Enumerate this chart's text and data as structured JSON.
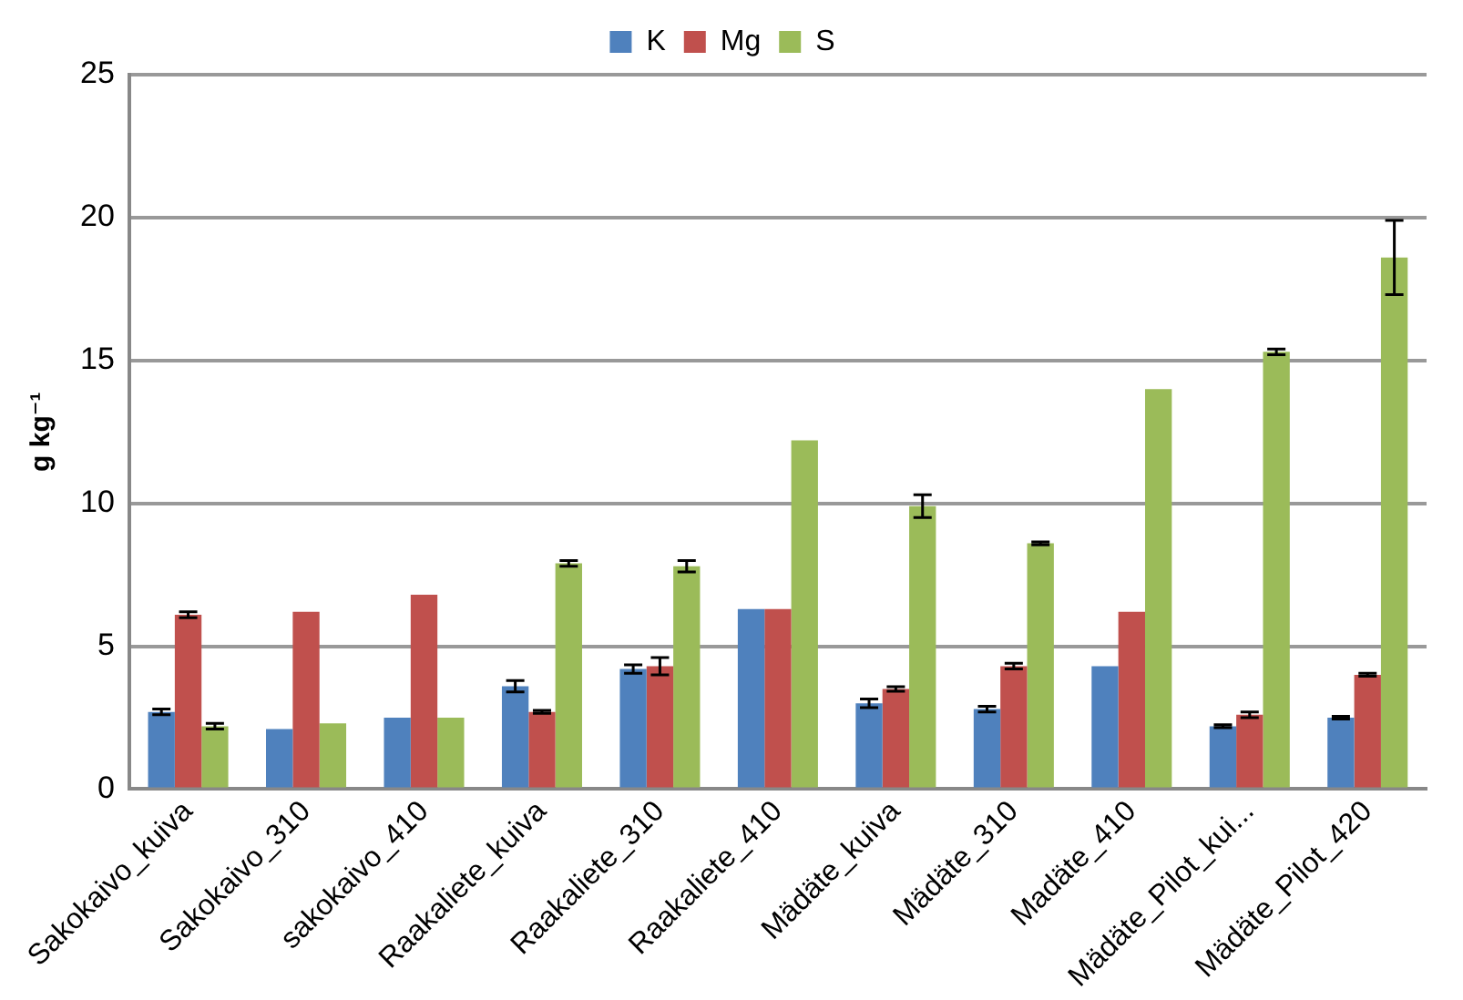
{
  "chart_data": {
    "type": "bar",
    "ylabel": "g kg⁻¹",
    "categories": [
      "Sakokaivo_kuiva",
      "Sakokaivo_310",
      "sakokaivo_410",
      "Raakaliete_kuiva",
      "Raakaliete_310",
      "Raakaliete_410",
      "Mädäte_kuiva",
      "Mädäte_310",
      "Madäte_410",
      "Mädäte_Pilot_kui...",
      "Mädäte_Pilot_420"
    ],
    "series": [
      {
        "name": "K",
        "color": "#4f81bd",
        "values": [
          2.7,
          2.1,
          2.5,
          3.6,
          4.2,
          6.3,
          3.0,
          2.8,
          4.3,
          2.2,
          2.5
        ],
        "errors": [
          0.1,
          null,
          null,
          0.2,
          0.15,
          null,
          0.15,
          0.1,
          null,
          0.05,
          0.05
        ]
      },
      {
        "name": "Mg",
        "color": "#c0504d",
        "values": [
          6.1,
          6.2,
          6.8,
          2.7,
          4.3,
          6.3,
          3.5,
          4.3,
          6.2,
          2.6,
          4.0
        ],
        "errors": [
          0.1,
          null,
          null,
          0.05,
          0.3,
          null,
          0.08,
          0.1,
          null,
          0.1,
          0.05
        ]
      },
      {
        "name": "S",
        "color": "#9bbb59",
        "values": [
          2.2,
          2.3,
          2.5,
          7.9,
          7.8,
          12.2,
          9.9,
          8.6,
          14.0,
          15.3,
          18.6
        ],
        "errors": [
          0.1,
          null,
          null,
          0.1,
          0.2,
          null,
          0.4,
          0.05,
          null,
          0.1,
          1.3
        ]
      }
    ],
    "ylim": [
      0,
      25
    ],
    "yticks": [
      0,
      5,
      10,
      15,
      20,
      25
    ],
    "grid": "y",
    "legend": "top"
  }
}
